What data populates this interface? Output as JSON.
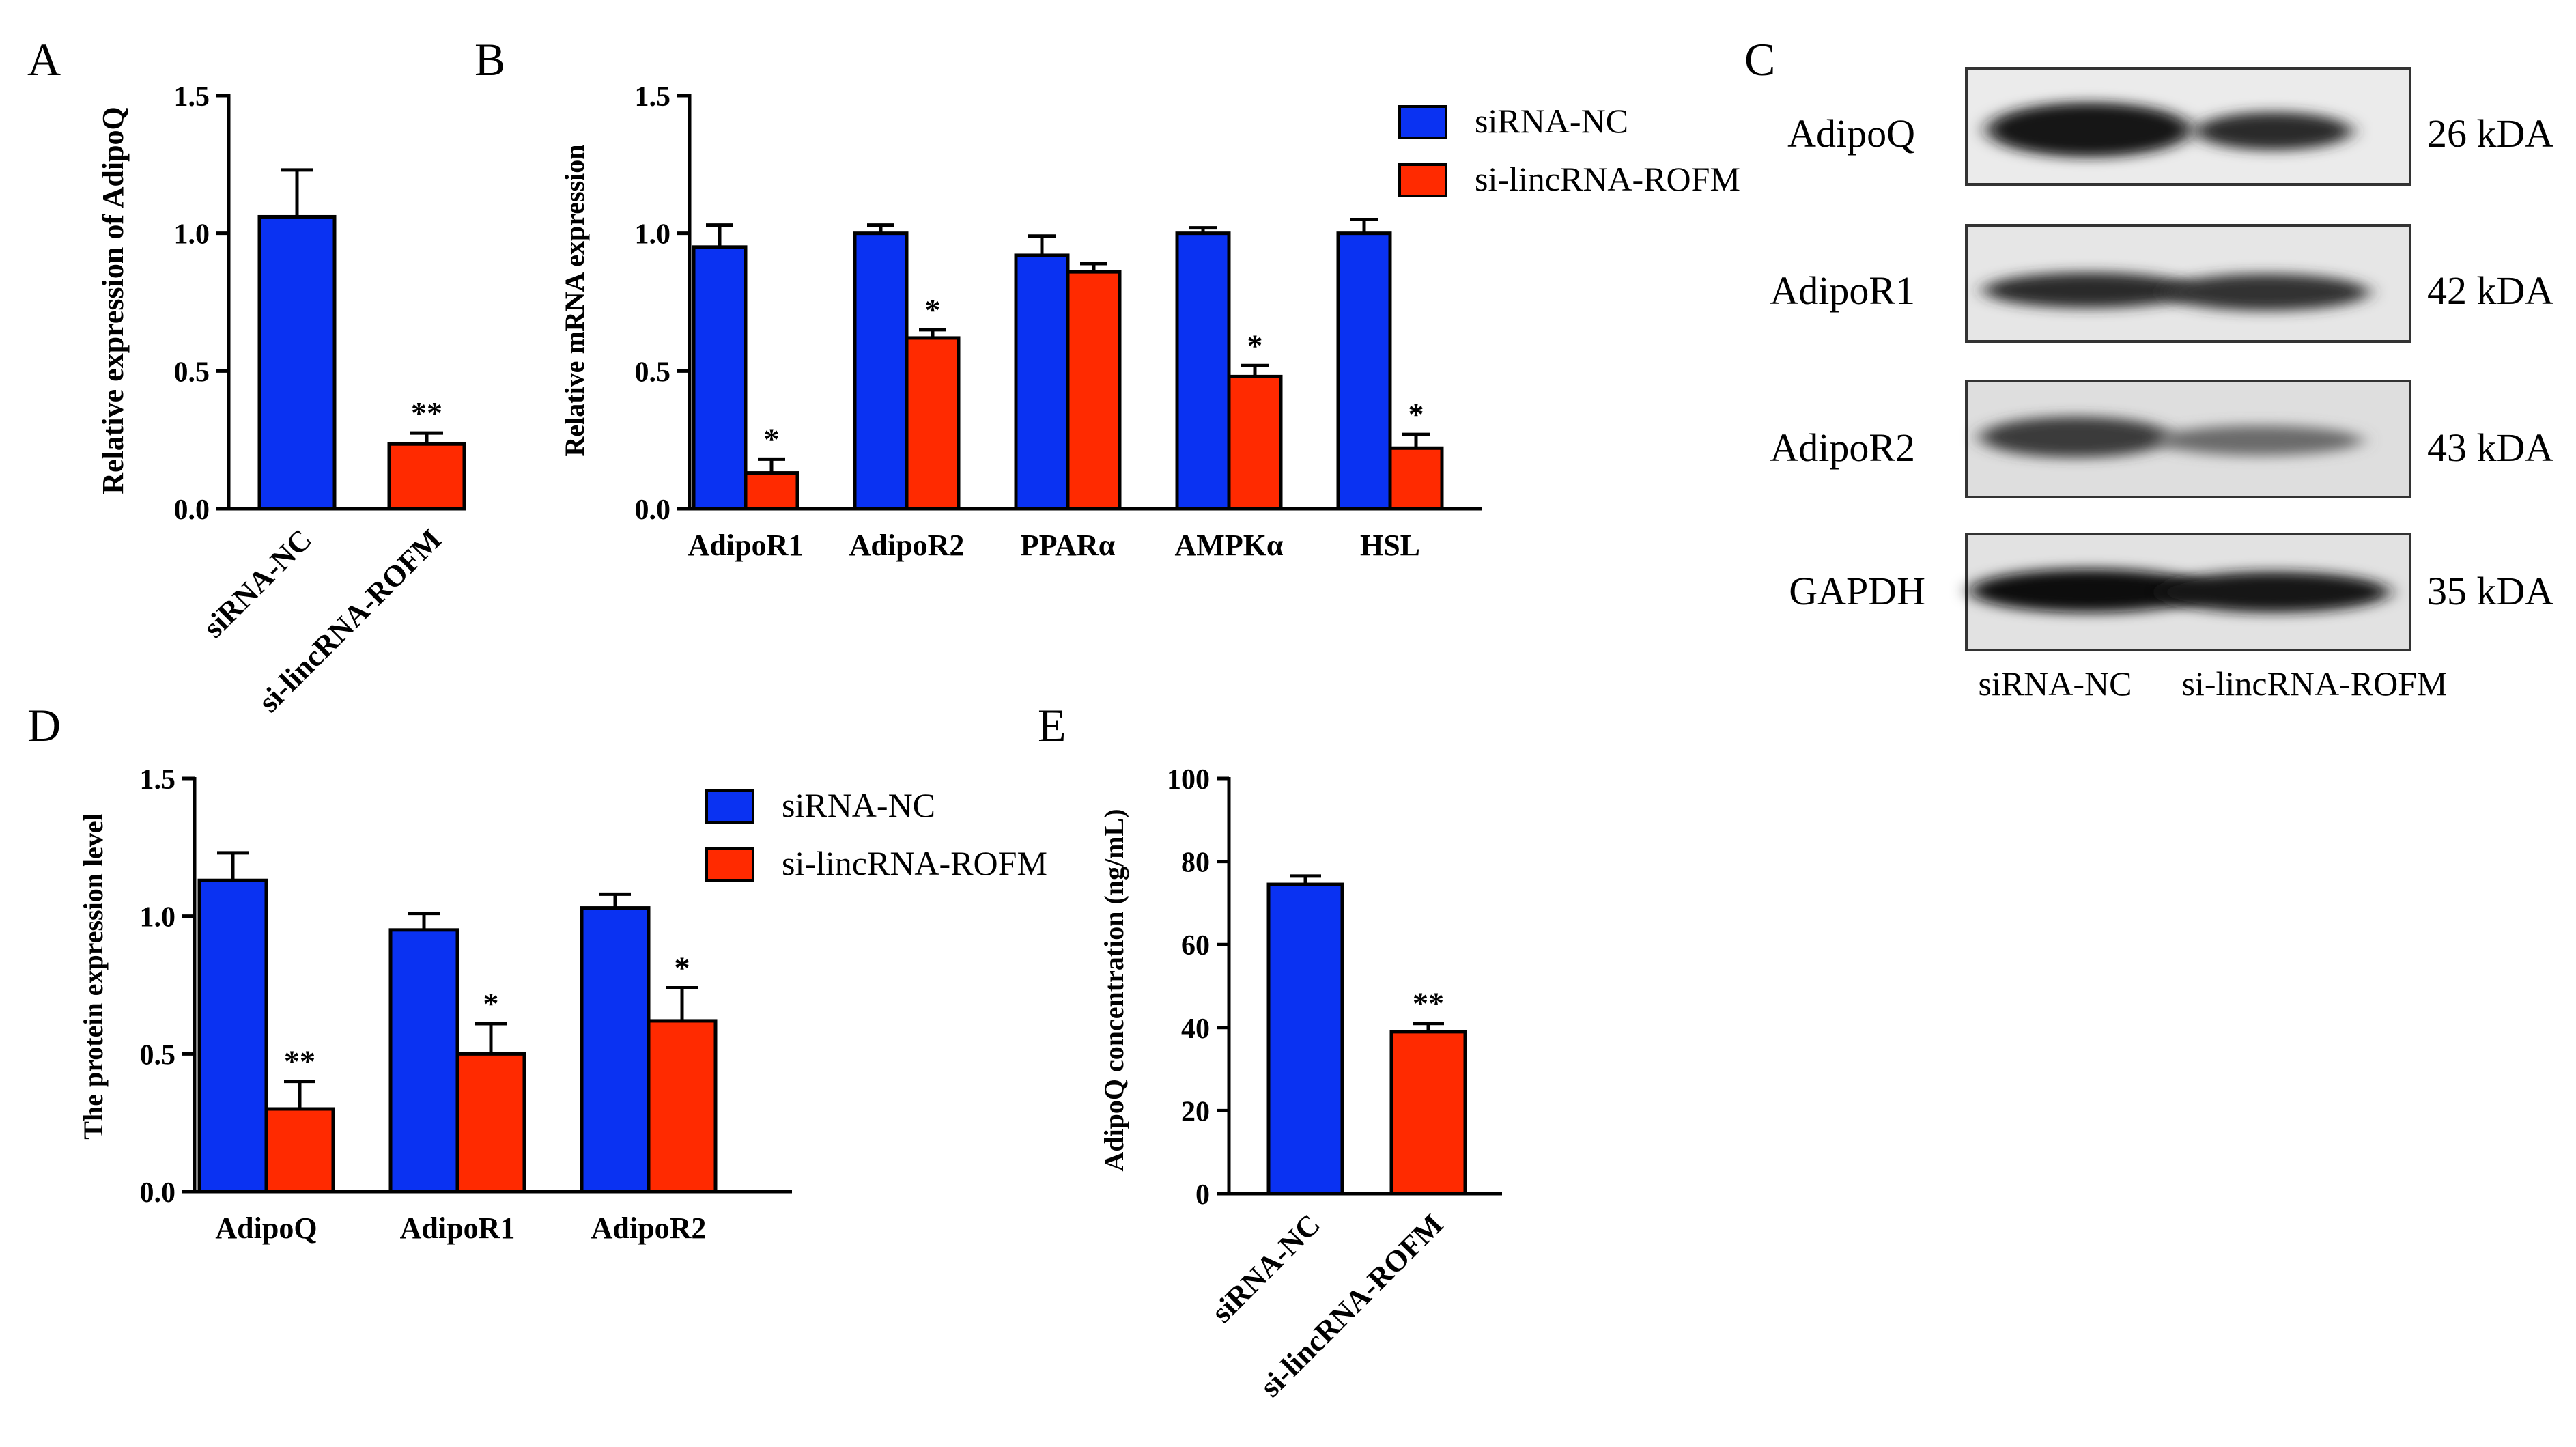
{
  "colors": {
    "series1": "#0a32f2",
    "series2": "#ff2a00",
    "axis": "#000000",
    "text": "#000000"
  },
  "panels": {
    "A": {
      "letter": "A",
      "chart_data": {
        "type": "bar",
        "categories": [
          "siRNA-NC",
          "si-lincRNA-ROFM"
        ],
        "values": [
          1.06,
          0.235
        ],
        "errors": [
          0.17,
          0.04
        ],
        "significance": [
          "",
          "**"
        ],
        "ylabel": "Relative expression of  AdipoQ",
        "ylim": [
          0,
          1.5
        ],
        "yticks": [
          "0.0",
          "0.5",
          "1.0",
          "1.5"
        ]
      }
    },
    "B": {
      "letter": "B",
      "chart_data": {
        "type": "bar",
        "categories": [
          "AdipoR1",
          "AdipoR2",
          "PPARα",
          "AMPKα",
          "HSL"
        ],
        "series": [
          {
            "name": "siRNA-NC",
            "values": [
              0.95,
              1.0,
              0.92,
              1.0,
              1.0
            ],
            "errors": [
              0.08,
              0.03,
              0.07,
              0.02,
              0.05
            ],
            "significance": [
              "",
              "",
              "",
              "",
              ""
            ]
          },
          {
            "name": "si-lincRNA-ROFM",
            "values": [
              0.13,
              0.62,
              0.86,
              0.48,
              0.22
            ],
            "errors": [
              0.05,
              0.03,
              0.03,
              0.04,
              0.05
            ],
            "significance": [
              "*",
              "*",
              "",
              "*",
              "*"
            ]
          }
        ],
        "ylabel": "Relative mRNA expression",
        "ylim": [
          0,
          1.5
        ],
        "yticks": [
          "0.0",
          "0.5",
          "1.0",
          "1.5"
        ],
        "legend": [
          "siRNA-NC",
          "si-lincRNA-ROFM"
        ]
      }
    },
    "C": {
      "letter": "C",
      "rows": [
        {
          "label": "AdipoQ",
          "size": "26 kDA"
        },
        {
          "label": "AdipoR1",
          "size": "42 kDA"
        },
        {
          "label": "AdipoR2",
          "size": "43 kDA"
        },
        {
          "label": "GAPDH",
          "size": "35 kDA"
        }
      ],
      "lanes": [
        "siRNA-NC",
        "si-lincRNA-ROFM"
      ]
    },
    "D": {
      "letter": "D",
      "chart_data": {
        "type": "bar",
        "categories": [
          "AdipoQ",
          "AdipoR1",
          "AdipoR2"
        ],
        "series": [
          {
            "name": "siRNA-NC",
            "values": [
              1.13,
              0.95,
              1.03
            ],
            "errors": [
              0.1,
              0.06,
              0.05
            ],
            "significance": [
              "",
              "",
              ""
            ]
          },
          {
            "name": "si-lincRNA-ROFM",
            "values": [
              0.3,
              0.5,
              0.62
            ],
            "errors": [
              0.1,
              0.11,
              0.12
            ],
            "significance": [
              "**",
              "*",
              "*"
            ]
          }
        ],
        "ylabel": "The protein expression level",
        "ylim": [
          0,
          1.5
        ],
        "yticks": [
          "0.0",
          "0.5",
          "1.0",
          "1.5"
        ],
        "legend": [
          "siRNA-NC",
          "si-lincRNA-ROFM"
        ]
      }
    },
    "E": {
      "letter": "E",
      "chart_data": {
        "type": "bar",
        "categories": [
          "siRNA-NC",
          "si-lincRNA-ROFM"
        ],
        "values": [
          74.5,
          39
        ],
        "errors": [
          2,
          2
        ],
        "significance": [
          "",
          "**"
        ],
        "ylabel": "AdipoQ concentration (ng/mL)",
        "ylim": [
          0,
          100
        ],
        "yticks": [
          "0",
          "20",
          "40",
          "60",
          "80",
          "100"
        ]
      }
    }
  }
}
